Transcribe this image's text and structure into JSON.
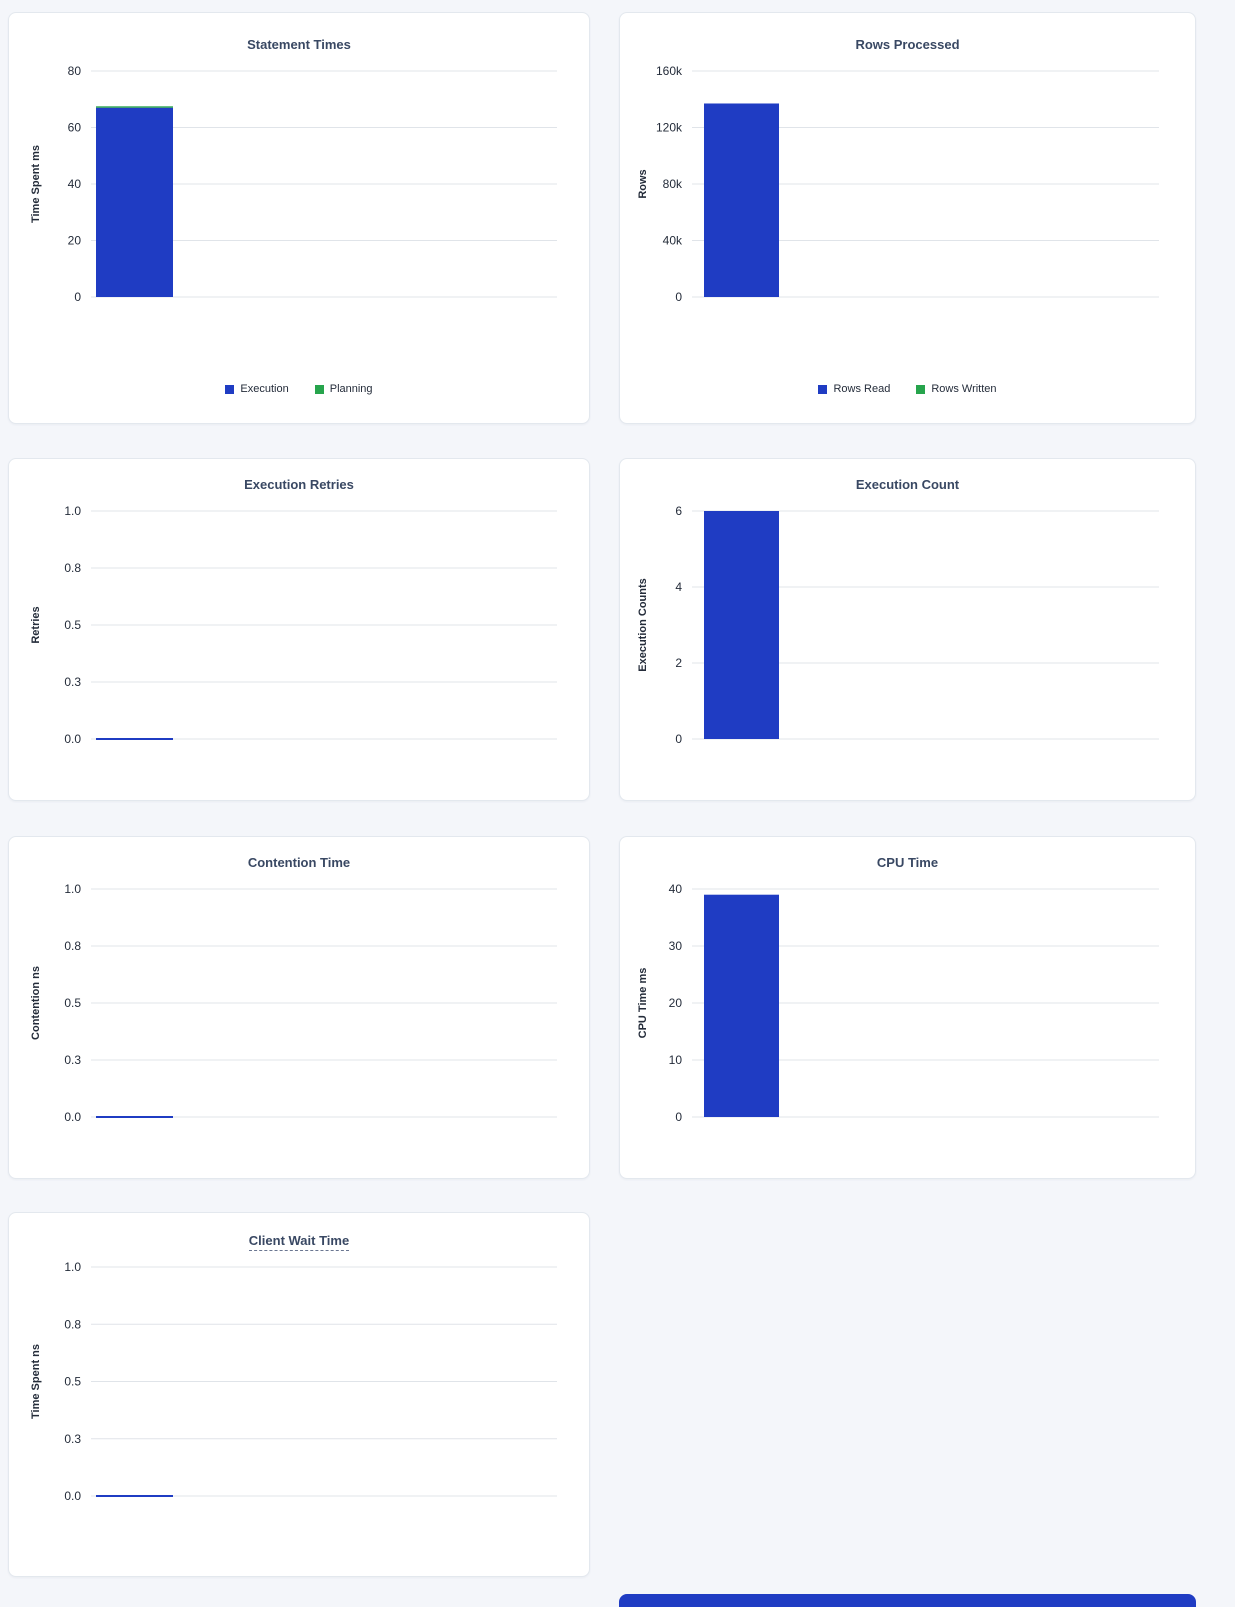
{
  "colors": {
    "bar_primary": "#1f3cc3",
    "bar_secondary": "#26a44c",
    "title_text": "#394863",
    "axis_text": "#242c3a",
    "gridline": "#e0e4e9",
    "card_background": "#ffffff",
    "page_background": "#f4f6fa"
  },
  "chart_data": [
    {
      "type": "bar",
      "title": "Statement Times",
      "ylabel": "Time Spent ms",
      "ytick_values": [
        0,
        20,
        40,
        60,
        80
      ],
      "ytick_labels": [
        "0",
        "20",
        "40",
        "60",
        "80"
      ],
      "ymax": 80,
      "stacked": true,
      "series": [
        {
          "name": "Execution",
          "value": 67,
          "color_key": "bar_primary"
        },
        {
          "name": "Planning",
          "value": 0.5,
          "color_key": "bar_secondary"
        }
      ],
      "legend": [
        {
          "label": "Execution",
          "color_key": "bar_primary"
        },
        {
          "label": "Planning",
          "color_key": "bar_secondary"
        }
      ],
      "grid": "on",
      "legend_position": "bottom-center"
    },
    {
      "type": "bar",
      "title": "Rows Processed",
      "ylabel": "Rows",
      "ytick_values": [
        0,
        40000,
        80000,
        120000,
        160000
      ],
      "ytick_labels": [
        "0",
        "40k",
        "80k",
        "120k",
        "160k"
      ],
      "ymax": 160000,
      "stacked": true,
      "series": [
        {
          "name": "Rows Read",
          "value": 137000,
          "color_key": "bar_primary"
        },
        {
          "name": "Rows Written",
          "value": 0,
          "color_key": "bar_secondary"
        }
      ],
      "legend": [
        {
          "label": "Rows Read",
          "color_key": "bar_primary"
        },
        {
          "label": "Rows Written",
          "color_key": "bar_secondary"
        }
      ],
      "grid": "on",
      "legend_position": "bottom-center"
    },
    {
      "type": "line",
      "title": "Execution Retries",
      "ylabel": "Retries",
      "ytick_values": [
        0,
        0.25,
        0.5,
        0.75,
        1
      ],
      "ytick_labels": [
        "0.0",
        "0.3",
        "0.5",
        "0.8",
        "1.0"
      ],
      "ymax": 1,
      "line_value": 0,
      "grid": "on"
    },
    {
      "type": "bar",
      "title": "Execution Count",
      "ylabel": "Execution Counts",
      "ytick_values": [
        0,
        2,
        4,
        6
      ],
      "ytick_labels": [
        "0",
        "2",
        "4",
        "6"
      ],
      "ymax": 6,
      "series": [
        {
          "name": "Execution Count",
          "value": 6,
          "color_key": "bar_primary"
        }
      ],
      "grid": "on"
    },
    {
      "type": "line",
      "title": "Contention Time",
      "ylabel": "Contention ns",
      "ytick_values": [
        0,
        0.25,
        0.5,
        0.75,
        1
      ],
      "ytick_labels": [
        "0.0",
        "0.3",
        "0.5",
        "0.8",
        "1.0"
      ],
      "ymax": 1,
      "line_value": 0,
      "grid": "on"
    },
    {
      "type": "bar",
      "title": "CPU Time",
      "ylabel": "CPU Time ms",
      "ytick_values": [
        0,
        10,
        20,
        30,
        40
      ],
      "ytick_labels": [
        "0",
        "10",
        "20",
        "30",
        "40"
      ],
      "ymax": 40,
      "series": [
        {
          "name": "CPU Time",
          "value": 39,
          "color_key": "bar_primary"
        }
      ],
      "grid": "on"
    },
    {
      "type": "line",
      "title": "Client Wait Time",
      "ylabel": "Time Spent ns",
      "ytick_values": [
        0,
        0.25,
        0.5,
        0.75,
        1
      ],
      "ytick_labels": [
        "0.0",
        "0.3",
        "0.5",
        "0.8",
        "1.0"
      ],
      "ymax": 1,
      "line_value": 0,
      "title_underline": true,
      "grid": "on"
    }
  ]
}
